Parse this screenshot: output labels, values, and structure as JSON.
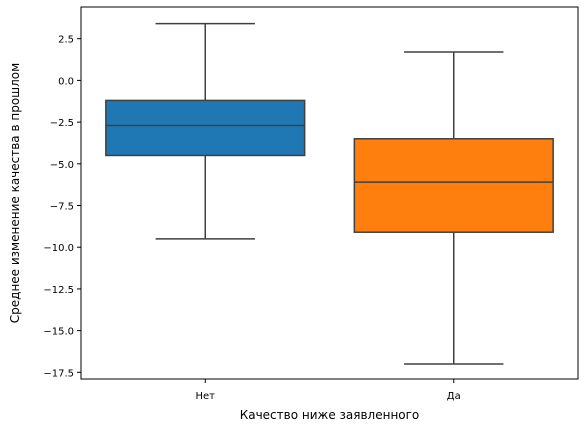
{
  "chart_data": {
    "type": "box",
    "xlabel": "Качество ниже заявленного",
    "ylabel": "Среднее изменение качества в прошлом",
    "ylim": [
      -17.9,
      4.4
    ],
    "yticks": [
      2.5,
      0.0,
      -2.5,
      -5.0,
      -7.5,
      -10.0,
      -12.5,
      -15.0,
      -17.5
    ],
    "ytick_labels": [
      "2.5",
      "0.0",
      "−2.5",
      "−5.0",
      "−7.5",
      "−10.0",
      "−12.5",
      "−15.0",
      "−17.5"
    ],
    "categories": [
      "Нет",
      "Да"
    ],
    "boxes": [
      {
        "category": "Нет",
        "whisker_low": -9.5,
        "q1": -4.5,
        "median": -2.7,
        "q3": -1.2,
        "whisker_high": 3.4,
        "color": "#1f77b4"
      },
      {
        "category": "Да",
        "whisker_low": -17.0,
        "q1": -9.1,
        "median": -6.1,
        "q3": -3.5,
        "whisker_high": 1.7,
        "color": "#ff7f0e"
      }
    ],
    "grid": false,
    "legend": "none"
  }
}
